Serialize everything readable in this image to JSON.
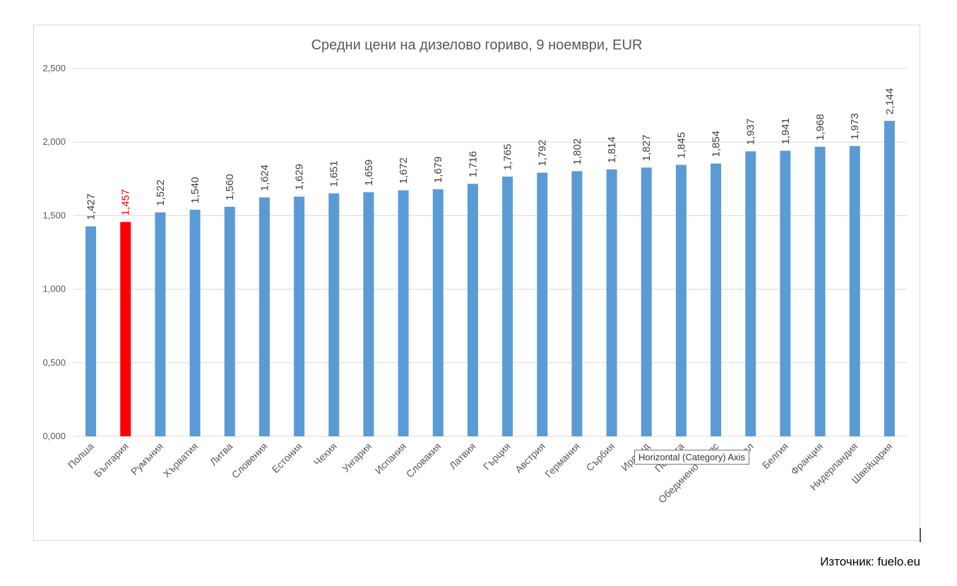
{
  "chart_data": {
    "type": "bar",
    "title": "Средни цени на дизелово гориво, 9 ноември, EUR",
    "xlabel": "",
    "ylabel": "",
    "ylim": [
      0,
      2.5
    ],
    "yticks": [
      0,
      0.5,
      1.0,
      1.5,
      2.0,
      2.5
    ],
    "ytick_labels": [
      "0,000",
      "0,500",
      "1,000",
      "1,500",
      "2,000",
      "2,500"
    ],
    "grid": true,
    "legend": "none",
    "categories": [
      "Полша",
      "България",
      "Румъния",
      "Хърватия",
      "Литва",
      "Словения",
      "Естония",
      "Чехия",
      "Унгария",
      "Испания",
      "Словакия",
      "Латвия",
      "Гърция",
      "Австрия",
      "Германия",
      "Сърбия",
      "Ирланд",
      "Португа",
      "Обединено кралс",
      "Итал",
      "Белгия",
      "Франция",
      "Нидерландия",
      "Швейцария"
    ],
    "values": [
      1.427,
      1.457,
      1.522,
      1.54,
      1.56,
      1.624,
      1.629,
      1.651,
      1.659,
      1.672,
      1.679,
      1.716,
      1.765,
      1.792,
      1.802,
      1.814,
      1.827,
      1.845,
      1.854,
      1.937,
      1.941,
      1.968,
      1.973,
      2.144
    ],
    "data_labels": [
      "1,427",
      "1,457",
      "1,522",
      "1,540",
      "1,560",
      "1,624",
      "1,629",
      "1,651",
      "1,659",
      "1,672",
      "1,679",
      "1,716",
      "1,765",
      "1,792",
      "1,802",
      "1,814",
      "1,827",
      "1,845",
      "1,854",
      "1,937",
      "1,941",
      "1,968",
      "1,973",
      "2,144"
    ],
    "highlight_index": 1,
    "colors": {
      "bar": "#5b9bd5",
      "highlight": "#ff0000",
      "grid": "#d9d9d9",
      "text": "#595959",
      "label": "#404040"
    }
  },
  "tooltip": "Horizontal (Category) Axis",
  "source": "Източник: fuelo.eu"
}
